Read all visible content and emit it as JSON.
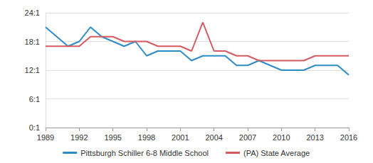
{
  "chart_data": {
    "type": "line",
    "x": [
      1989,
      1990,
      1991,
      1992,
      1993,
      1994,
      1995,
      1996,
      1997,
      1998,
      1999,
      2000,
      2001,
      2002,
      2003,
      2004,
      2005,
      2006,
      2007,
      2008,
      2009,
      2010,
      2011,
      2012,
      2013,
      2014,
      2015,
      2016
    ],
    "series": [
      {
        "name": "Pittsburgh Schiller 6-8 Middle School",
        "color": "#2e8bc9",
        "values": [
          21,
          19,
          17,
          18,
          21,
          19,
          18,
          17,
          18,
          15,
          16,
          16,
          16,
          14,
          15,
          15,
          15,
          13,
          13,
          14,
          13,
          12,
          12,
          12,
          13,
          13,
          13,
          11
        ]
      },
      {
        "name": "(PA) State Average",
        "color": "#d35a5f",
        "values": [
          17,
          17,
          17,
          17,
          19,
          19,
          19,
          18,
          18,
          18,
          17,
          17,
          17,
          16,
          22,
          16,
          16,
          15,
          15,
          14,
          14,
          14,
          14,
          14,
          15,
          15,
          15,
          15
        ]
      }
    ],
    "xlim": [
      1989,
      2016
    ],
    "xticks": [
      1989,
      1992,
      1995,
      1998,
      2001,
      2004,
      2007,
      2010,
      2013,
      2016
    ],
    "ylim": [
      0,
      24
    ],
    "yticks": [
      {
        "value": 0,
        "label": "0:1"
      },
      {
        "value": 6,
        "label": "6:1"
      },
      {
        "value": 12,
        "label": "12:1"
      },
      {
        "value": 18,
        "label": "18:1"
      },
      {
        "value": 24,
        "label": "24:1"
      }
    ],
    "grid": true,
    "legend": "bottom"
  }
}
